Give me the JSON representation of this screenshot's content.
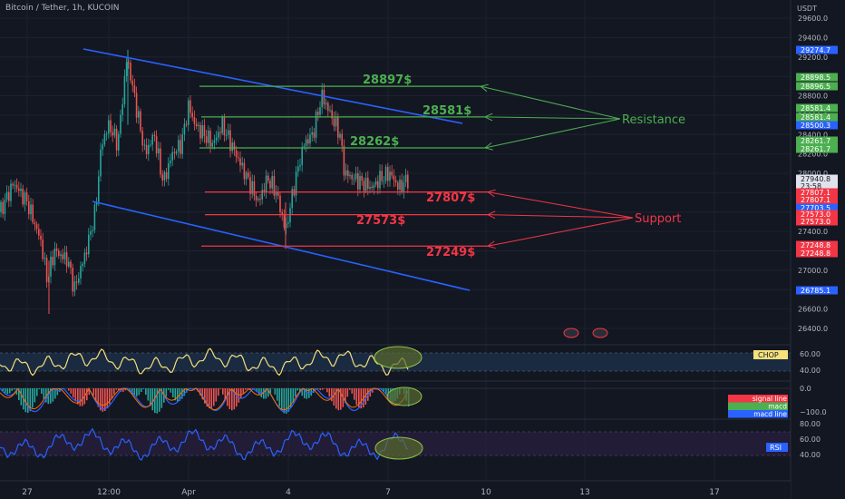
{
  "header": {
    "symbol_title": "Bitcoin / Tether, 1h, KUCOIN",
    "currency": "USDT"
  },
  "colors": {
    "background": "#131722",
    "grid": "#1e2230",
    "up": "#26a69a",
    "down": "#ef5350",
    "channel": "#2962ff",
    "resistance": "#4caf50",
    "support": "#f23645",
    "chop": "#f5e07a",
    "rsi": "#2962ff",
    "highlight": "#5b6b2e"
  },
  "price_axis": {
    "ticks": [
      "29600.0",
      "29400.0",
      "29200.0",
      "29000.0",
      "28800.0",
      "28600.0",
      "28400.0",
      "28200.0",
      "28000.0",
      "27800.0",
      "27600.0",
      "27400.0",
      "27200.0",
      "27000.0",
      "26800.0",
      "26600.0",
      "26400.0"
    ],
    "labels": [
      {
        "text": "29274.7",
        "color": "#2962ff"
      },
      {
        "text": "28898.5",
        "color": "#4caf50"
      },
      {
        "text": "28896.5",
        "color": "#4caf50"
      },
      {
        "text": "28581.4",
        "color": "#4caf50"
      },
      {
        "text": "28581.4",
        "color": "#4caf50"
      },
      {
        "text": "28500.3",
        "color": "#2962ff"
      },
      {
        "text": "28261.7",
        "color": "#4caf50"
      },
      {
        "text": "28261.7",
        "color": "#4caf50"
      },
      {
        "text": "27940.8",
        "color": "#e0e3eb"
      },
      {
        "text": "23:58",
        "color": "#e0e3eb"
      },
      {
        "text": "27807.1",
        "color": "#f23645"
      },
      {
        "text": "27807.1",
        "color": "#f23645"
      },
      {
        "text": "27703.5",
        "color": "#2962ff"
      },
      {
        "text": "27573.0",
        "color": "#f23645"
      },
      {
        "text": "27573.0",
        "color": "#f23645"
      },
      {
        "text": "27248.8",
        "color": "#f23645"
      },
      {
        "text": "27248.8",
        "color": "#f23645"
      },
      {
        "text": "26785.1",
        "color": "#2962ff"
      }
    ]
  },
  "annotations": {
    "resistance_levels": [
      "28897$",
      "28581$",
      "28262$"
    ],
    "support_levels": [
      "27807$",
      "27573$",
      "27249$"
    ],
    "resistance_label": "Resistance",
    "support_label": "Support"
  },
  "indicators": {
    "chop": {
      "badge": "CHOP",
      "ticks": [
        "60.00",
        "40.00"
      ]
    },
    "macd": {
      "ticks": [
        "0.0",
        "−100.0"
      ],
      "badges": [
        "signal line",
        "macd",
        "macd line"
      ]
    },
    "rsi": {
      "badge": "RSI",
      "ticks": [
        "80.00",
        "60.00",
        "40.00"
      ]
    }
  },
  "time_axis": {
    "labels": [
      "27",
      "12:00",
      "Apr",
      "4",
      "7",
      "10",
      "13",
      "17"
    ]
  }
}
